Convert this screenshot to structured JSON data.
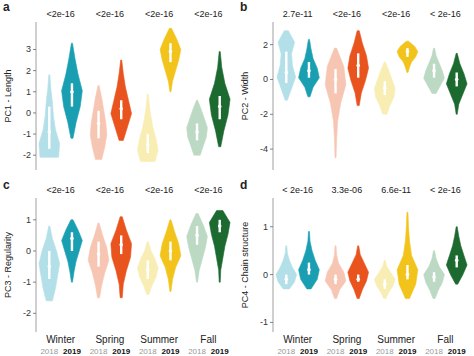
{
  "chart_data": [
    {
      "type": "violin",
      "label": "a",
      "y_label": "PC1 - Length",
      "tick_labels": "y",
      "categories": [
        "Winter",
        "Spring",
        "Summer",
        "Fall"
      ],
      "p_values": [
        "<2e-16",
        "<2e-16",
        "<2e-16",
        "<2e-16"
      ],
      "ylim": [
        -2.7,
        4.3
      ],
      "yticks": [
        -2,
        -1,
        0,
        1,
        2,
        3
      ],
      "series": [
        {
          "name": "2018",
          "colors": [
            "#b3e0e8",
            "#f6c6b3",
            "#f8eeb4",
            "#bcd9c4"
          ],
          "min": [
            -2.1,
            -2.2,
            -2.3,
            -2.0
          ],
          "q1": [
            -1.7,
            -1.2,
            -1.9,
            -1.3
          ],
          "median": [
            -0.9,
            -0.5,
            -1.5,
            -0.9
          ],
          "q3": [
            0.3,
            0.1,
            -1.0,
            -0.5
          ],
          "max": [
            1.8,
            1.3,
            0.9,
            0.6
          ],
          "density": [
            [
              0.9,
              1,
              0.6,
              0.4,
              0.3,
              0.15,
              0.05
            ],
            [
              0.3,
              0.6,
              0.8,
              0.7,
              0.5,
              0.3,
              0.05
            ],
            [
              0.7,
              1,
              0.8,
              0.5,
              0.3,
              0.15,
              0.05
            ],
            [
              0.3,
              0.6,
              0.9,
              1,
              0.7,
              0.4,
              0.05
            ]
          ]
        },
        {
          "name": "2019",
          "colors": [
            "#1a9fb2",
            "#e9531d",
            "#f2c41b",
            "#1d6a30"
          ],
          "min": [
            -1.2,
            -1.3,
            1.0,
            -1.6
          ],
          "q1": [
            0.3,
            -0.3,
            2.4,
            -0.3
          ],
          "median": [
            1.0,
            0.2,
            2.9,
            0.3
          ],
          "q3": [
            1.4,
            0.6,
            3.3,
            0.8
          ],
          "max": [
            3.3,
            2.5,
            4.0,
            2.9
          ],
          "density": [
            [
              0.1,
              0.4,
              0.8,
              1,
              0.6,
              0.3,
              0.05
            ],
            [
              0.2,
              0.6,
              1,
              0.7,
              0.4,
              0.2,
              0.05
            ],
            [
              0.05,
              0.2,
              0.5,
              0.8,
              1,
              0.6,
              0.1
            ],
            [
              0.1,
              0.4,
              0.8,
              1,
              0.5,
              0.2,
              0.05
            ]
          ]
        }
      ]
    },
    {
      "type": "violin",
      "label": "b",
      "y_label": "PC2 - Width",
      "tick_labels": "y",
      "categories": [
        "Winter",
        "Spring",
        "Summer",
        "Fall"
      ],
      "p_values": [
        "2.7e-11",
        "<2e-16",
        "<2e-16",
        "< 2e-16"
      ],
      "ylim": [
        -5.2,
        3.3
      ],
      "yticks": [
        -4,
        -2,
        0,
        2
      ],
      "series": [
        {
          "name": "2018",
          "colors": [
            "#b3e0e8",
            "#f6c6b3",
            "#f8eeb4",
            "#bcd9c4"
          ],
          "min": [
            -1.2,
            -4.5,
            -2.0,
            -0.8
          ],
          "q1": [
            -0.2,
            -0.8,
            -0.9,
            0.1
          ],
          "median": [
            0.4,
            0.0,
            -0.5,
            0.5
          ],
          "q3": [
            1.6,
            0.6,
            -0.1,
            0.9
          ],
          "max": [
            2.8,
            1.8,
            1.0,
            1.8
          ],
          "density": [
            [
              0.1,
              0.5,
              0.9,
              0.6,
              0.5,
              0.8,
              0.2
            ],
            [
              0.05,
              0.1,
              0.2,
              0.5,
              1,
              0.8,
              0.1
            ],
            [
              0.2,
              0.5,
              0.9,
              1,
              0.7,
              0.4,
              0.05
            ],
            [
              0.2,
              0.6,
              1,
              0.8,
              0.5,
              0.2,
              0.05
            ]
          ]
        },
        {
          "name": "2019",
          "colors": [
            "#1a9fb2",
            "#e9531d",
            "#f2c41b",
            "#1d6a30"
          ],
          "min": [
            -1.0,
            -1.5,
            0.4,
            -2.0
          ],
          "q1": [
            0.1,
            0.1,
            1.3,
            -0.4
          ],
          "median": [
            0.5,
            0.8,
            1.6,
            0.0
          ],
          "q3": [
            1.0,
            1.5,
            1.8,
            0.4
          ],
          "max": [
            2.3,
            2.8,
            2.2,
            1.5
          ],
          "density": [
            [
              0.1,
              0.4,
              1,
              0.8,
              0.4,
              0.2,
              0.05
            ],
            [
              0.1,
              0.3,
              0.7,
              1,
              0.8,
              0.4,
              0.1
            ],
            [
              0.05,
              0.2,
              0.4,
              0.8,
              1,
              0.7,
              0.1
            ],
            [
              0.05,
              0.2,
              0.6,
              1,
              0.7,
              0.3,
              0.05
            ]
          ]
        }
      ]
    },
    {
      "type": "violin",
      "label": "c",
      "y_label": "PC3 - Regularity",
      "categories": [
        "Winter",
        "Spring",
        "Summer",
        "Fall"
      ],
      "p_values": [
        "<2e-16",
        "<2e-16",
        "<2e-16",
        "<2e-16"
      ],
      "ylim": [
        -2.6,
        1.7
      ],
      "yticks": [
        -2,
        -1,
        0,
        1
      ],
      "series": [
        {
          "name": "2018",
          "colors": [
            "#b3e0e8",
            "#f6c6b3",
            "#f8eeb4",
            "#bcd9c4"
          ],
          "min": [
            -1.6,
            -1.5,
            -1.4,
            -1.0
          ],
          "q1": [
            -0.9,
            -0.5,
            -0.9,
            0.2
          ],
          "median": [
            -0.5,
            -0.1,
            -0.6,
            0.5
          ],
          "q3": [
            0.0,
            0.3,
            -0.3,
            0.8
          ],
          "max": [
            0.8,
            0.9,
            0.3,
            1.2
          ],
          "density": [
            [
              0.3,
              0.6,
              0.8,
              1,
              0.7,
              0.3,
              0.05
            ],
            [
              0.1,
              0.3,
              0.6,
              1,
              0.8,
              0.4,
              0.05
            ],
            [
              0.1,
              0.4,
              0.8,
              1,
              0.7,
              0.3,
              0.05
            ],
            [
              0.05,
              0.2,
              0.5,
              0.8,
              1,
              0.6,
              0.1
            ]
          ]
        },
        {
          "name": "2019",
          "colors": [
            "#1a9fb2",
            "#e9531d",
            "#f2c41b",
            "#1d6a30"
          ],
          "min": [
            -1.0,
            -1.5,
            -1.3,
            -1.0
          ],
          "q1": [
            0.0,
            -0.1,
            -0.3,
            0.6
          ],
          "median": [
            0.4,
            0.2,
            0.0,
            0.8
          ],
          "q3": [
            0.6,
            0.5,
            0.3,
            1.0
          ],
          "max": [
            1.0,
            1.1,
            1.0,
            1.3
          ],
          "density": [
            [
              0.05,
              0.2,
              0.4,
              0.7,
              1,
              0.6,
              0.1
            ],
            [
              0.1,
              0.2,
              0.5,
              0.9,
              1,
              0.5,
              0.1
            ],
            [
              0.05,
              0.2,
              0.5,
              1,
              0.8,
              0.4,
              0.05
            ],
            [
              0.05,
              0.1,
              0.3,
              0.5,
              0.8,
              1,
              0.3
            ]
          ]
        }
      ]
    },
    {
      "type": "violin",
      "label": "d",
      "y_label": "PC4 - Chain structure",
      "categories": [
        "Winter",
        "Spring",
        "Summer",
        "Fall"
      ],
      "p_values": [
        "< 2e-16",
        "3.3e-06",
        "6.6e-11",
        "< 2e-16"
      ],
      "ylim": [
        -1.2,
        1.6
      ],
      "yticks": [
        -1,
        0,
        1
      ],
      "series": [
        {
          "name": "2018",
          "colors": [
            "#b3e0e8",
            "#f6c6b3",
            "#f8eeb4",
            "#bcd9c4"
          ],
          "min": [
            -0.3,
            -0.5,
            -0.5,
            -0.5
          ],
          "q1": [
            -0.2,
            -0.2,
            -0.3,
            -0.15
          ],
          "median": [
            -0.1,
            -0.1,
            -0.2,
            -0.05
          ],
          "q3": [
            0.0,
            0.0,
            -0.1,
            0.05
          ],
          "max": [
            0.6,
            0.6,
            0.3,
            0.5
          ],
          "density": [
            [
              0.3,
              0.8,
              1,
              0.6,
              0.3,
              0.1,
              0.05
            ],
            [
              0.1,
              0.4,
              1,
              0.8,
              0.3,
              0.1,
              0.05
            ],
            [
              0.1,
              0.4,
              0.8,
              1,
              0.6,
              0.2,
              0.05
            ],
            [
              0.1,
              0.4,
              0.8,
              1,
              0.5,
              0.2,
              0.05
            ]
          ]
        },
        {
          "name": "2019",
          "colors": [
            "#1a9fb2",
            "#e9531d",
            "#f2c41b",
            "#1d6a30"
          ],
          "min": [
            -0.3,
            -0.5,
            -0.5,
            -0.2
          ],
          "q1": [
            0.0,
            -0.15,
            -0.1,
            0.15
          ],
          "median": [
            0.1,
            -0.1,
            0.0,
            0.3
          ],
          "q3": [
            0.25,
            0.0,
            0.2,
            0.4
          ],
          "max": [
            0.9,
            0.6,
            1.3,
            1.0
          ],
          "density": [
            [
              0.2,
              0.8,
              1,
              0.6,
              0.3,
              0.1,
              0.05
            ],
            [
              0.1,
              0.4,
              0.8,
              1,
              0.6,
              0.2,
              0.05
            ],
            [
              0.2,
              0.8,
              1,
              0.4,
              0.2,
              0.1,
              0.05
            ],
            [
              0.1,
              0.6,
              1,
              0.7,
              0.4,
              0.2,
              0.05
            ]
          ]
        }
      ]
    }
  ]
}
